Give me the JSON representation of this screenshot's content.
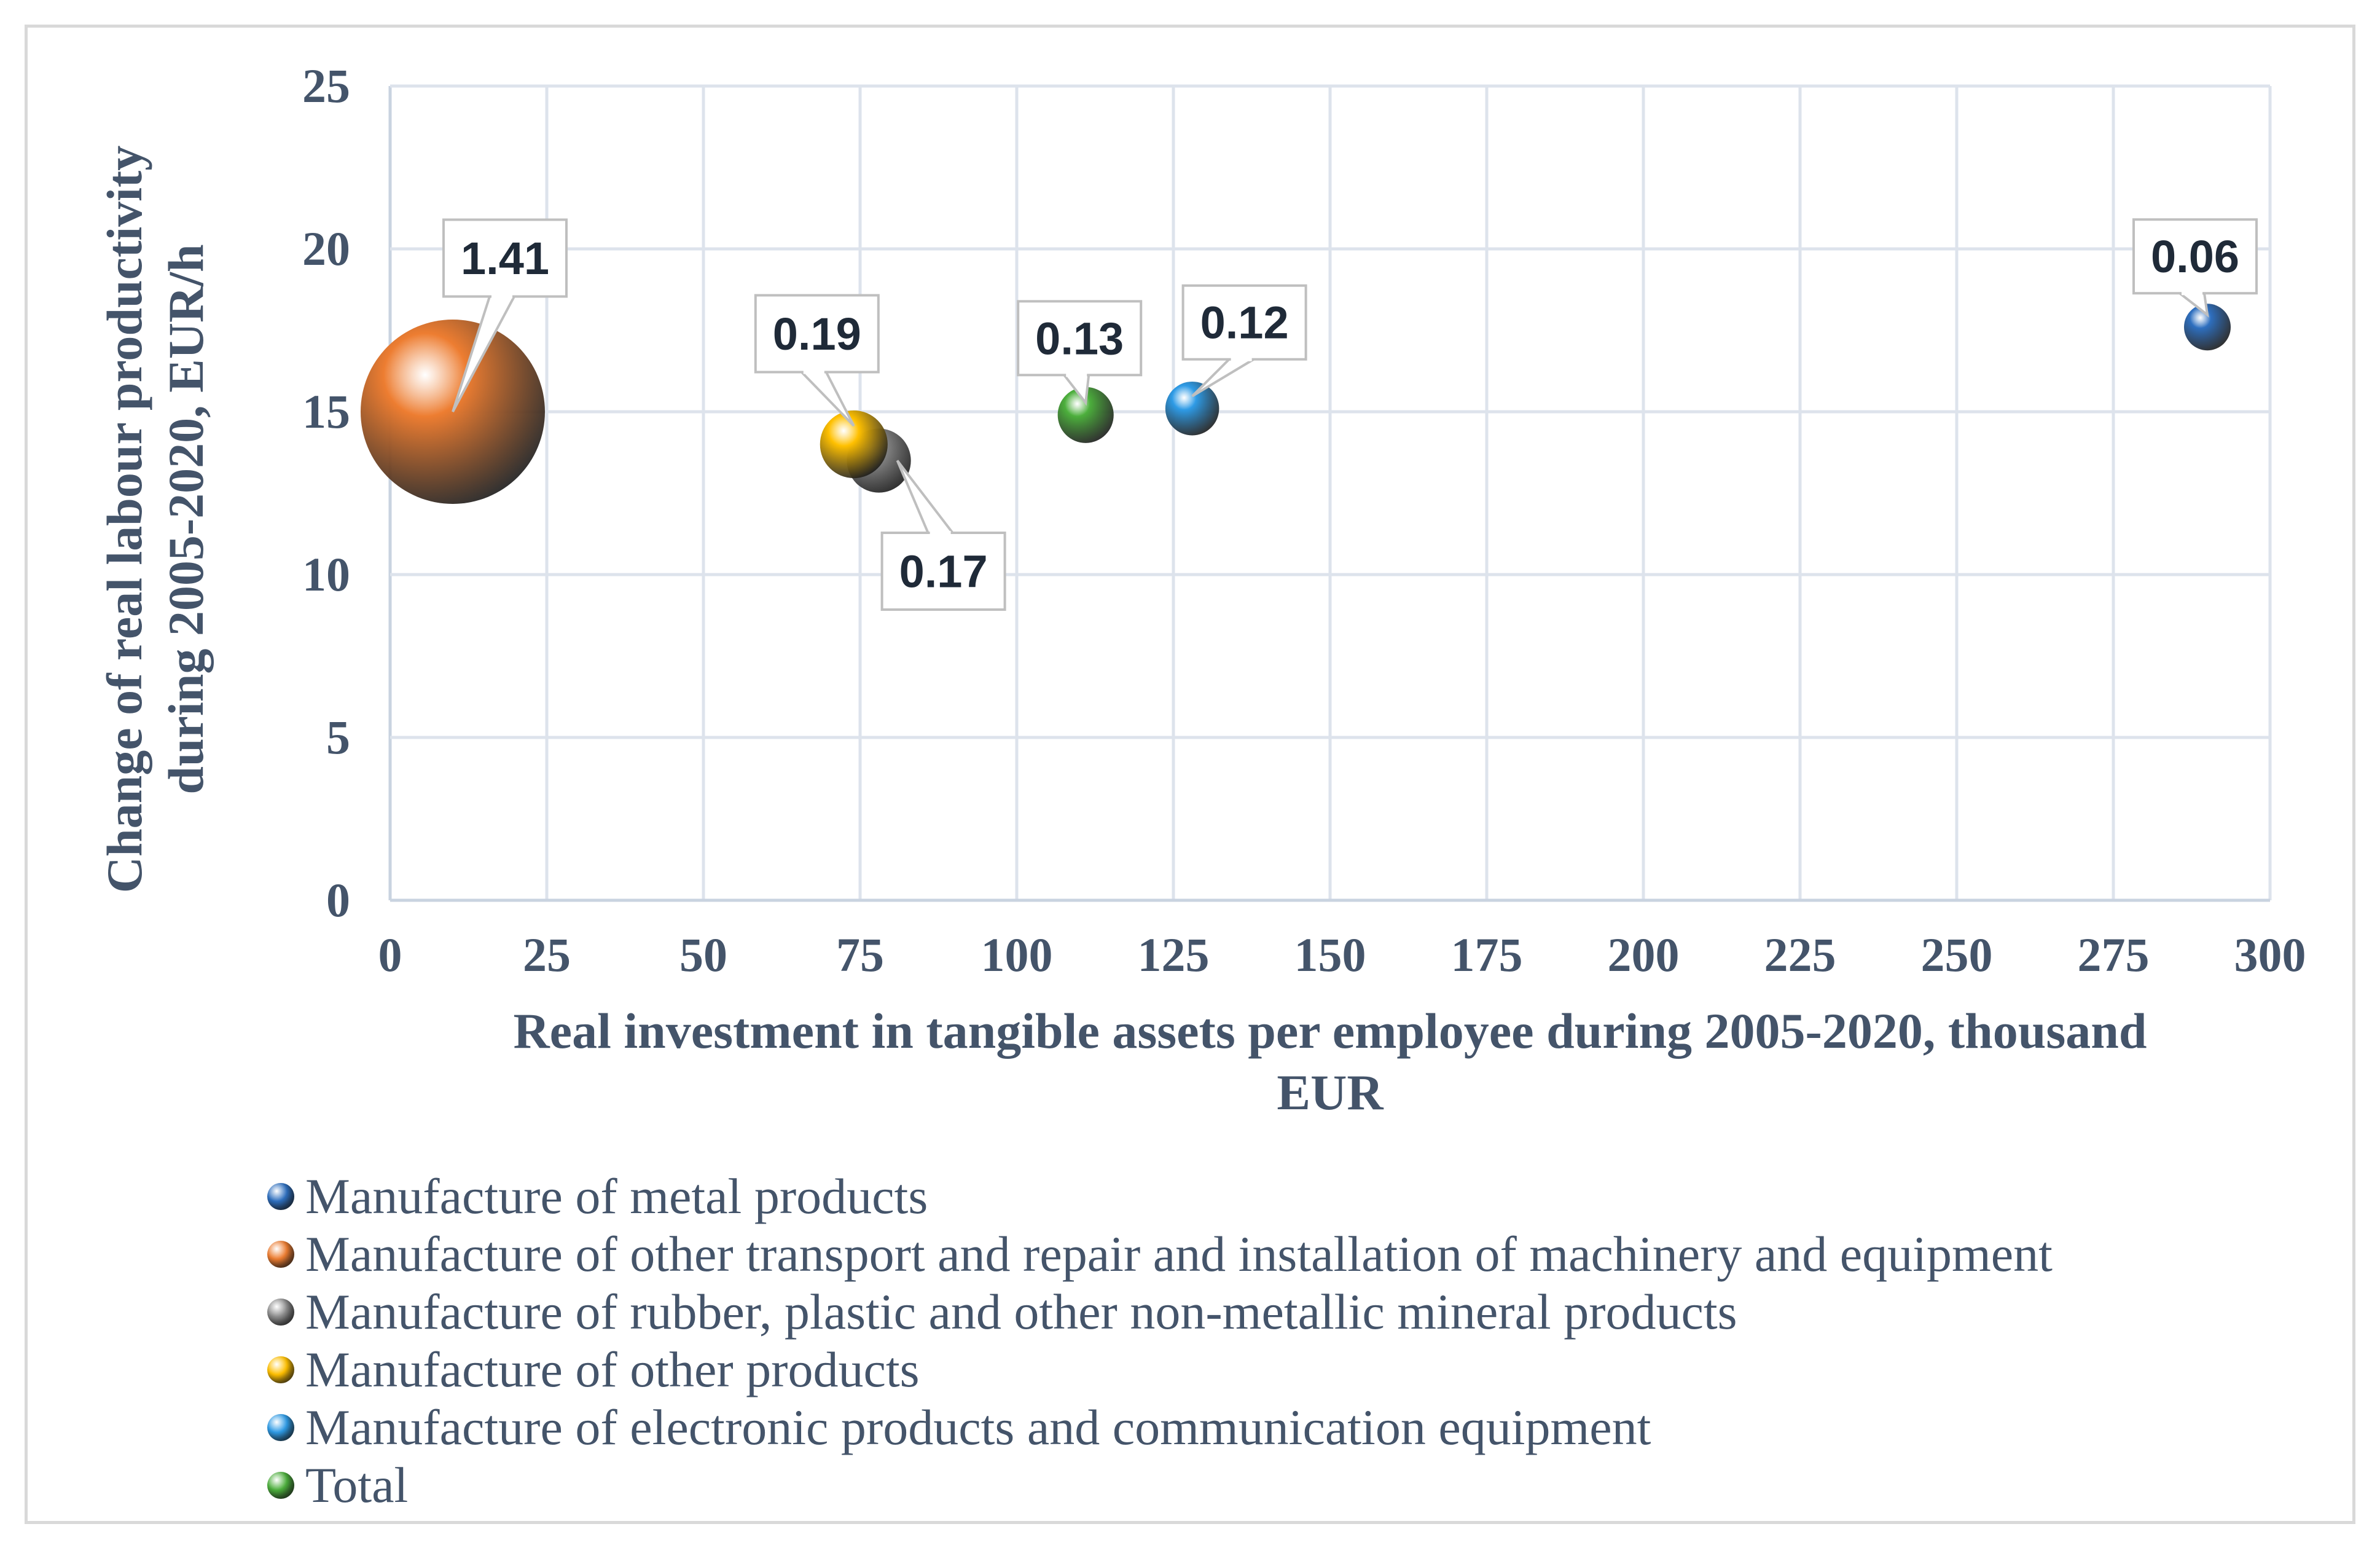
{
  "chart_data": {
    "type": "bubble",
    "xlabel_lines": [
      "Real investment in tangible assets per employee  during 2005-2020, thousand",
      "EUR"
    ],
    "ylabel_lines": [
      "Change of real labour productivity",
      "during 2005-2020, EUR/h"
    ],
    "xlim": [
      0,
      300
    ],
    "ylim": [
      0,
      25
    ],
    "xticks": [
      0,
      25,
      50,
      75,
      100,
      125,
      150,
      175,
      200,
      225,
      250,
      275,
      300
    ],
    "yticks": [
      0,
      5,
      10,
      15,
      20,
      25
    ],
    "grid": true,
    "legend_position": "bottom-left",
    "series": [
      {
        "name": "Manufacture of metal products",
        "x": 290,
        "y": 17.6,
        "size": 0.06,
        "label": "0.06",
        "color": "#2e6fbf"
      },
      {
        "name": "Manufacture of other transport  and repair and installation of machinery and equipment",
        "x": 10,
        "y": 15,
        "size": 1.41,
        "label": "1.41",
        "color": "#ed7d31"
      },
      {
        "name": "Manufacture of rubber, plastic and other non-metallic mineral products",
        "x": 78,
        "y": 13.5,
        "size": 0.17,
        "label": "0.17",
        "color": "#8c8c8c"
      },
      {
        "name": "Manufacture of other products",
        "x": 74,
        "y": 14,
        "size": 0.19,
        "label": "0.19",
        "color": "#ffc000"
      },
      {
        "name": "Manufacture of electronic products and communication equipment",
        "x": 128,
        "y": 15.1,
        "size": 0.12,
        "label": "0.12",
        "color": "#2e9be6"
      },
      {
        "name": "Total",
        "x": 111,
        "y": 14.9,
        "size": 0.13,
        "label": "0.13",
        "color": "#4caf3c"
      }
    ]
  }
}
